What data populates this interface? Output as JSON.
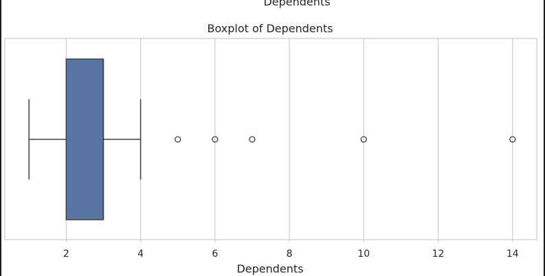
{
  "cut_header": "Dependents",
  "chart_data": {
    "type": "box",
    "title": "Boxplot of Dependents",
    "xlabel": "Dependents",
    "ylabel": "",
    "orientation": "horizontal",
    "xlim": [
      0.35,
      14.65
    ],
    "xticks": [
      2,
      4,
      6,
      8,
      10,
      12,
      14
    ],
    "grid": true,
    "series": [
      {
        "whisker_low": 1,
        "q1": 2,
        "median": 3,
        "q3": 3,
        "whisker_high": 4,
        "outliers": [
          5,
          6,
          7,
          10,
          14
        ]
      }
    ],
    "colors": {
      "box_fill": "#5975a4",
      "box_edge": "#3f3f3f",
      "grid": "#cccccc",
      "axes_edge": "#cccccc"
    }
  }
}
